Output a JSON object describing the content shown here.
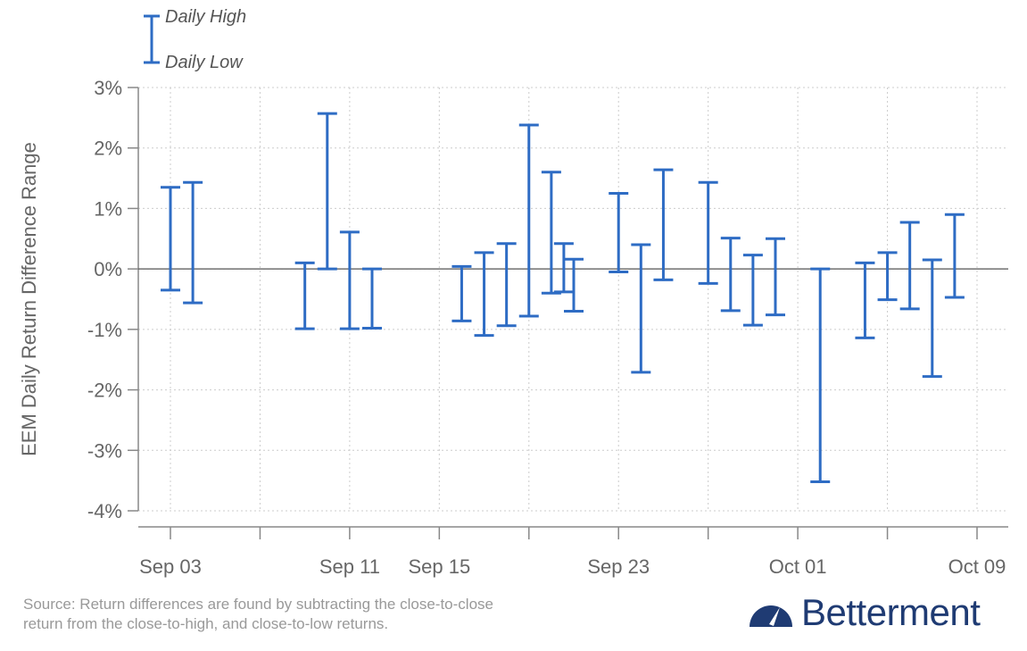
{
  "colors": {
    "bar": "#2e6cc4",
    "grid": "#cccccc",
    "axis": "#888888",
    "zero": "#555555",
    "brand": "#1f3b73"
  },
  "legend": {
    "high": "Daily High",
    "low": "Daily Low"
  },
  "source_note": [
    "Source: Return differences are found by subtracting the close-to-close",
    "return from the close-to-high, and close-to-low returns."
  ],
  "brand": {
    "name": "Betterment",
    "icon": "speedometer-icon"
  },
  "chart_data": {
    "type": "range-bar",
    "ylabel": "EEM Daily Return Difference Range",
    "ylim": [
      -4,
      3
    ],
    "yticks": [
      3,
      2,
      1,
      0,
      -1,
      -2,
      -3,
      -4
    ],
    "ytick_labels": [
      "3%",
      "2%",
      "1%",
      "0%",
      "-1%",
      "-2%",
      "-3%",
      "-4%"
    ],
    "xlim": [
      "2019-09-03",
      "2019-10-09"
    ],
    "xticks": [
      "2019-09-03",
      "2019-09-07",
      "2019-09-11",
      "2019-09-15",
      "2019-09-19",
      "2019-09-23",
      "2019-09-27",
      "2019-10-01",
      "2019-10-05",
      "2019-10-09"
    ],
    "xtick_labels": [
      "Sep 03",
      "",
      "Sep 11",
      "Sep 15",
      "",
      "Sep 23",
      "",
      "Oct 01",
      "",
      "Oct 09"
    ],
    "grid": true,
    "legend_position": "top-left",
    "series": [
      {
        "name": "Daily High",
        "values": [
          1.35,
          1.43,
          0.1,
          2.57,
          0.61,
          0.0,
          0.04,
          0.27,
          0.42,
          2.38,
          1.6,
          0.42,
          0.16,
          1.25,
          0.4,
          1.64,
          1.43,
          0.51,
          0.23,
          0.5,
          0.0,
          0.1,
          0.27,
          0.77,
          0.15,
          0.9
        ]
      },
      {
        "name": "Daily Low",
        "values": [
          -0.35,
          -0.56,
          -0.99,
          0.0,
          -0.99,
          -0.98,
          -0.86,
          -1.1,
          -0.94,
          -0.78,
          -0.4,
          -0.38,
          -0.7,
          -0.05,
          -1.71,
          -0.18,
          -0.24,
          -0.69,
          -0.93,
          -0.76,
          -3.52,
          -1.14,
          -0.51,
          -0.66,
          -1.78,
          -0.47
        ]
      }
    ],
    "x": [
      "2019-09-03",
      "2019-09-04",
      "2019-09-09",
      "2019-09-10",
      "2019-09-11",
      "2019-09-12",
      "2019-09-16",
      "2019-09-17",
      "2019-09-18",
      "2019-09-19",
      "2019-09-20",
      "2019-09-20",
      "2019-09-21",
      "2019-09-23",
      "2019-09-24",
      "2019-09-25",
      "2019-09-27",
      "2019-09-28",
      "2019-09-29",
      "2019-09-30",
      "2019-10-02",
      "2019-10-04",
      "2019-10-05",
      "2019-10-06",
      "2019-10-07",
      "2019-10-08"
    ]
  }
}
